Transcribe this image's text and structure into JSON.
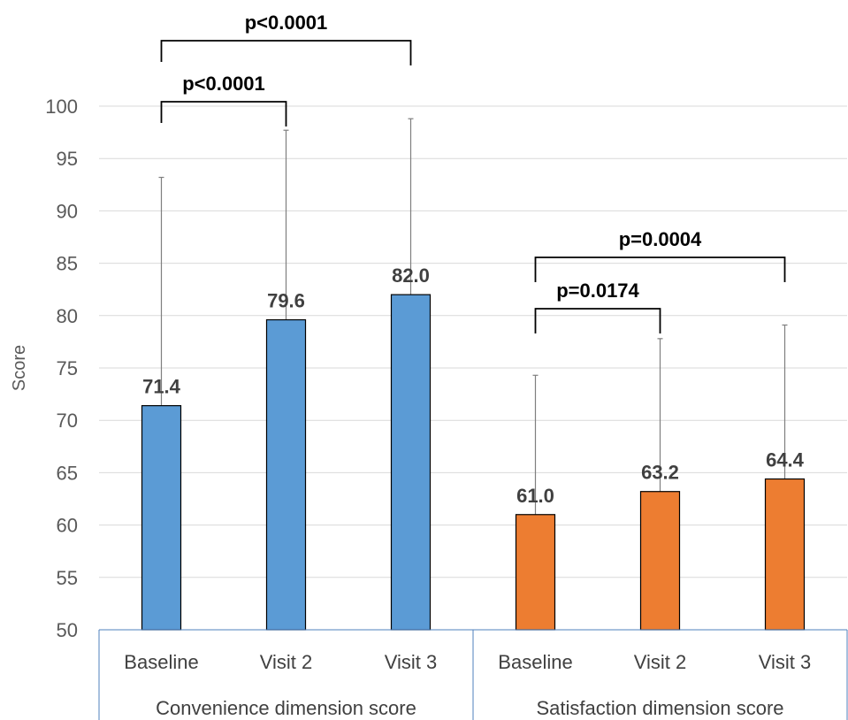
{
  "chart_data": {
    "type": "bar",
    "ylabel": "Score",
    "ylim": [
      50,
      100
    ],
    "yticks": [
      50,
      55,
      60,
      65,
      70,
      75,
      80,
      85,
      90,
      95,
      100
    ],
    "grid": true,
    "groups": [
      {
        "name": "Convenience dimension score",
        "color": "#5b9bd5",
        "categories": [
          "Baseline",
          "Visit 2",
          "Visit 3"
        ],
        "values": [
          71.4,
          79.6,
          82.0
        ],
        "labels": [
          "71.4",
          "79.6",
          "82.0"
        ],
        "error_upper": [
          93.2,
          97.7,
          98.8
        ]
      },
      {
        "name": "Satisfaction dimension score",
        "color": "#ed7d31",
        "categories": [
          "Baseline",
          "Visit 2",
          "Visit 3"
        ],
        "values": [
          61.0,
          63.2,
          64.4
        ],
        "labels": [
          "61.0",
          "63.2",
          "64.4"
        ],
        "error_upper": [
          74.3,
          77.8,
          79.1
        ]
      }
    ],
    "comparisons": [
      {
        "group": 0,
        "from": 0,
        "to": 2,
        "label": "p<0.0001",
        "level": "outer"
      },
      {
        "group": 0,
        "from": 0,
        "to": 1,
        "label": "p<0.0001",
        "level": "inner"
      },
      {
        "group": 1,
        "from": 0,
        "to": 2,
        "label": "p=0.0004",
        "level": "outer"
      },
      {
        "group": 1,
        "from": 0,
        "to": 1,
        "label": "p=0.0174",
        "level": "inner"
      }
    ]
  }
}
